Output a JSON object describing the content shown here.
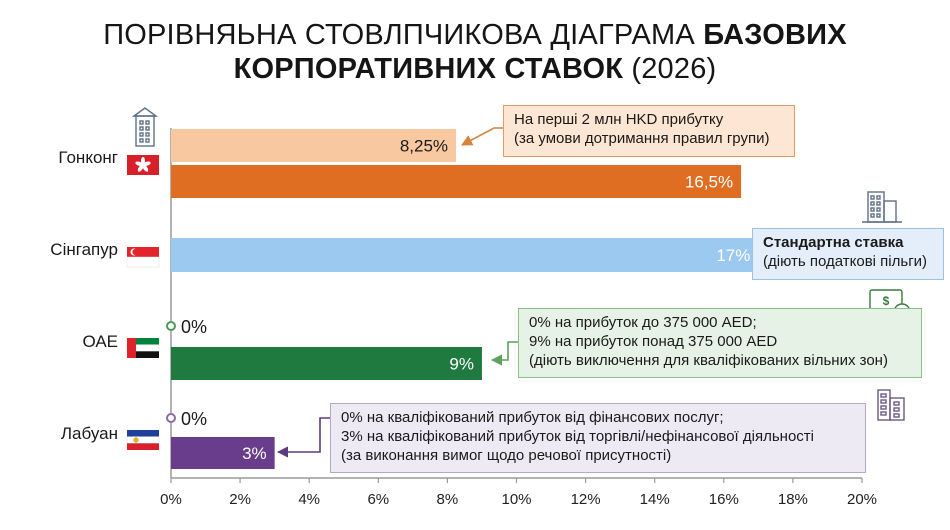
{
  "title": {
    "line1_regular": "ПОРІВНЯЬНА СТОВЛПЧИКОВА ДІАГРАМА",
    "line1_bold": "БАЗОВИХ",
    "line2_bold": "КОРПОРАТИВНИХ СТАВОК",
    "line2_regular": "(2026)"
  },
  "colors": {
    "hk_light": "#f8c8a0",
    "hk_dark": "#df6e22",
    "sg": "#9cc9ef",
    "ae": "#1f7a40",
    "lb": "#6a3d8c",
    "axis": "#9a9a9a"
  },
  "chart_data": {
    "type": "bar",
    "orientation": "horizontal",
    "title": "ПОРІВНЯЬНА СТОВЛПЧИКОВА ДІАГРАМА БАЗОВИХ КОРПОРАТИВНИХ СТАВОК (2026)",
    "xlim": [
      0,
      20
    ],
    "xticks": [
      "0%",
      "2%",
      "4%",
      "6%",
      "8%",
      "10%",
      "12%",
      "14%",
      "16%",
      "18%",
      "20%"
    ],
    "grid": false,
    "categories": [
      {
        "name": "Гонконг",
        "flag": "hong-kong-flag",
        "icon": "building-icon",
        "bars": [
          {
            "value": 8.25,
            "label": "8,25%",
            "color": "#f8c8a0",
            "label_color": "#1a1a1a"
          },
          {
            "value": 16.5,
            "label": "16,5%",
            "color": "#df6e22",
            "label_color": "#ffffff"
          }
        ]
      },
      {
        "name": "Сінгапур",
        "flag": "singapore-flag",
        "icon": "office-building-icon",
        "bars": [
          {
            "value": 17,
            "label": "17%",
            "color": "#9cc9ef",
            "label_color": "#ffffff"
          }
        ]
      },
      {
        "name": "ОАЕ",
        "flag": "uae-flag",
        "icon": "money-icon",
        "zero_marker": {
          "value": 0,
          "label": "0%",
          "color": "#4a9a5a"
        },
        "bars": [
          {
            "value": 9,
            "label": "9%",
            "color": "#1f7a40",
            "label_color": "#ffffff"
          }
        ]
      },
      {
        "name": "Лабуан",
        "flag": "labuan-flag",
        "icon": "buildings-icon",
        "zero_marker": {
          "value": 0,
          "label": "0%",
          "color": "#8a6aaa"
        },
        "bars": [
          {
            "value": 3,
            "label": "3%",
            "color": "#6a3d8c",
            "label_color": "#ffffff"
          }
        ]
      }
    ]
  },
  "callouts": {
    "hk": {
      "line1": "На перші 2 млн HKD прибутку",
      "line2": "(за умови дотримання правил групи)"
    },
    "sg": {
      "line1": "Стандартна ставка",
      "line2": "(діють податкові пільги)"
    },
    "ae": {
      "line1": "0% на прибуток до 375 000 AED;",
      "line2": "9% на прибуток понад 375 000 AED",
      "line3": "(діють виключення для кваліфікованих вільних зон)"
    },
    "lb": {
      "line1": "0% на кваліфікований прибуток від фінансових послуг;",
      "line2": "3% на кваліфікований прибуток від торгівлі/нефінансової діяльності",
      "line3": "(за виконання вимог щодо речової присутності)"
    }
  }
}
